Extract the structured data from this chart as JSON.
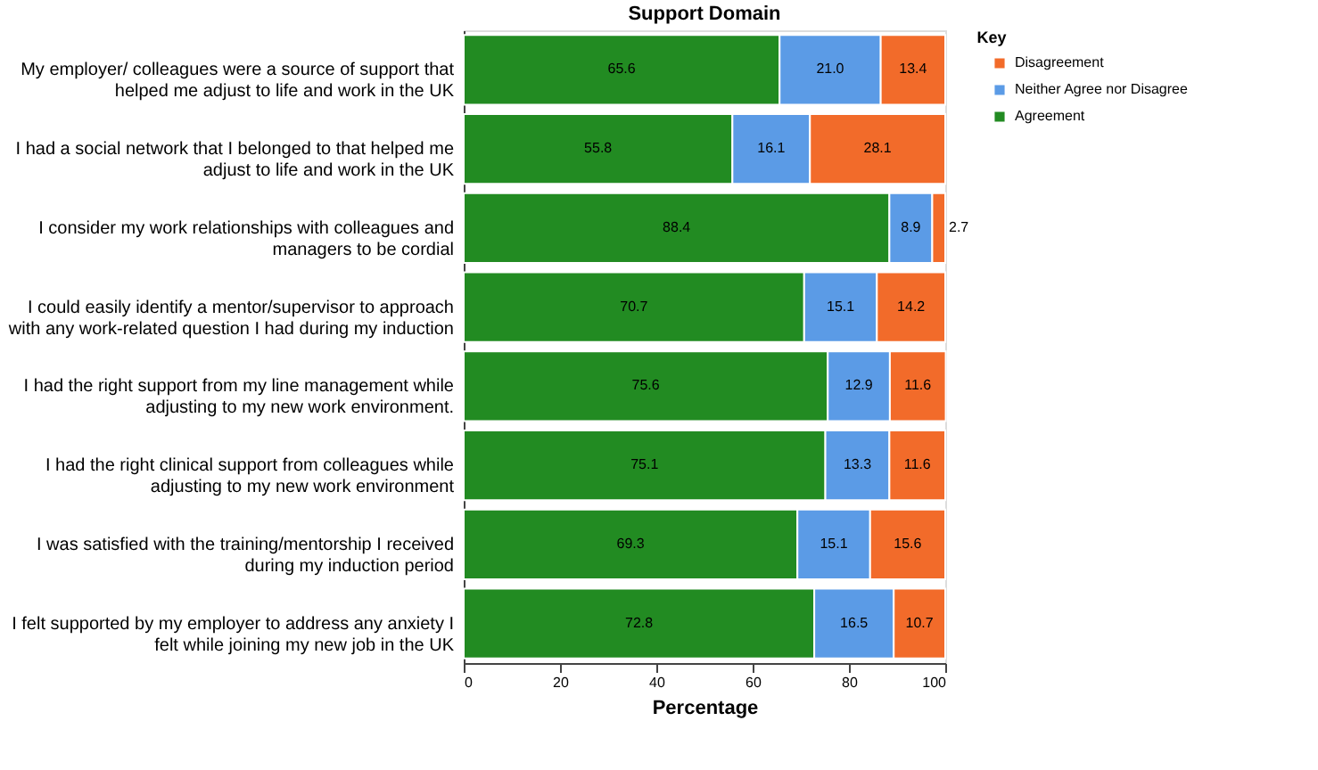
{
  "chart_data": {
    "type": "bar",
    "orientation": "horizontal",
    "stacked": true,
    "title": "Support Domain",
    "xlabel": "Percentage",
    "legend_title": "Key",
    "legend": "top right",
    "grid": false,
    "categories": [
      "My employer/ colleagues were a source of support that helped me adjust to life and work in the UK",
      "I had a social network that I belonged to that helped me adjust to life and work in the UK",
      "I consider my work relationships with colleagues and managers to be cordial",
      "I could easily identify a mentor/supervisor to approach with any work-related question I had during my induction",
      "I had the right support from my line management while adjusting to my new work environment.",
      "I had the right clinical support from colleagues while adjusting to my new work environment",
      "I was satisfied with the training/mentorship I received during my induction period",
      "I felt supported by my employer to address any anxiety I felt while joining my new job in the UK"
    ],
    "xlim": [
      0,
      100
    ],
    "xticks": [
      0,
      20,
      40,
      60,
      80,
      100
    ],
    "series": [
      {
        "name": "Agreement",
        "color": "#228b22",
        "values": [
          65.6,
          55.8,
          88.4,
          70.7,
          75.6,
          75.1,
          69.3,
          72.8
        ],
        "value_labels": [
          "65.6",
          "55.8",
          "88.4",
          "70.7",
          "75.6",
          "75.1",
          "69.3",
          "72.8"
        ]
      },
      {
        "name": "Neither Agree nor Disagree",
        "color": "#5b9be6",
        "values": [
          21.0,
          16.1,
          8.9,
          15.1,
          12.9,
          13.3,
          15.1,
          16.5
        ],
        "value_labels": [
          "21.0",
          "16.1",
          "8.9",
          "15.1",
          "12.9",
          "13.3",
          "15.1",
          "16.5"
        ]
      },
      {
        "name": "Disagreement",
        "color": "#f26b2a",
        "values": [
          13.4,
          28.1,
          2.7,
          14.2,
          11.6,
          11.6,
          15.6,
          10.7
        ],
        "value_labels": [
          "13.4",
          "28.1",
          "2.7",
          "14.2",
          "11.6",
          "11.6",
          "15.6",
          "10.7"
        ]
      }
    ]
  }
}
